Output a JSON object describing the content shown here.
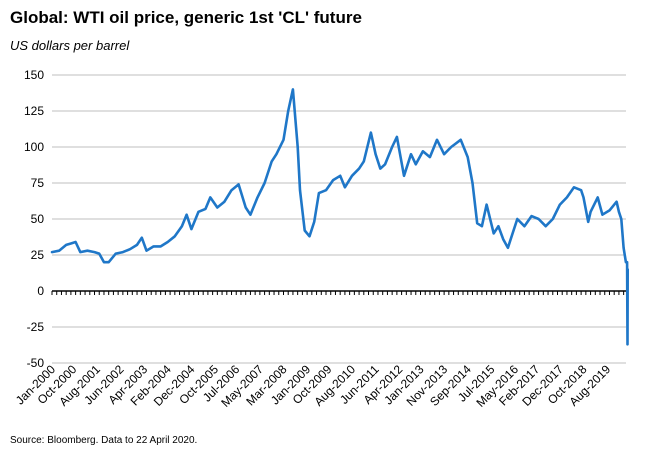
{
  "title": "Global: WTI oil price, generic 1st 'CL' future",
  "subtitle": "US dollars per barrel",
  "source": "Source: Bloomberg. Data to 22 April 2020.",
  "chart_data": {
    "type": "line",
    "title": "Global: WTI oil price, generic 1st 'CL' future",
    "ylabel": "US dollars per barrel",
    "xlabel": "",
    "ylim": [
      -50,
      150
    ],
    "yticks": [
      150,
      125,
      100,
      75,
      50,
      25,
      0,
      -25,
      -50
    ],
    "xlim": [
      "2000-01",
      "2020-04"
    ],
    "grid": "horizontal",
    "legend": "none",
    "line_color": "#1f77c8",
    "xtick_labels": [
      "Jan-2000",
      "Oct-2000",
      "Aug-2001",
      "Jun-2002",
      "Apr-2003",
      "Feb-2004",
      "Dec-2004",
      "Oct-2005",
      "Jul-2006",
      "May-2007",
      "Mar-2008",
      "Jan-2009",
      "Oct-2009",
      "Aug-2010",
      "Jun-2011",
      "Apr-2012",
      "Jan-2013",
      "Nov-2013",
      "Sep-2014",
      "Jul-2015",
      "May-2016",
      "Feb-2017",
      "Dec-2017",
      "Oct-2018",
      "Aug-2019"
    ],
    "series": [
      {
        "x": [
          "2000-01",
          "2000-04",
          "2000-07",
          "2000-09",
          "2000-11",
          "2001-01",
          "2001-04",
          "2001-07",
          "2001-09",
          "2001-11",
          "2002-01",
          "2002-04",
          "2002-07",
          "2002-10",
          "2003-01",
          "2003-03",
          "2003-05",
          "2003-08",
          "2003-11",
          "2004-02",
          "2004-05",
          "2004-08",
          "2004-10",
          "2004-12",
          "2005-03",
          "2005-06",
          "2005-08",
          "2005-11",
          "2006-02",
          "2006-05",
          "2006-08",
          "2006-11",
          "2007-01",
          "2007-04",
          "2007-07",
          "2007-10",
          "2007-12",
          "2008-03",
          "2008-05",
          "2008-07",
          "2008-09",
          "2008-10",
          "2008-12",
          "2009-02",
          "2009-04",
          "2009-06",
          "2009-09",
          "2009-12",
          "2010-03",
          "2010-05",
          "2010-08",
          "2010-11",
          "2011-01",
          "2011-04",
          "2011-06",
          "2011-08",
          "2011-10",
          "2012-01",
          "2012-03",
          "2012-06",
          "2012-09",
          "2012-11",
          "2013-02",
          "2013-05",
          "2013-08",
          "2013-11",
          "2014-02",
          "2014-06",
          "2014-09",
          "2014-11",
          "2015-01",
          "2015-03",
          "2015-05",
          "2015-08",
          "2015-10",
          "2015-12",
          "2016-02",
          "2016-04",
          "2016-06",
          "2016-09",
          "2016-12",
          "2017-03",
          "2017-06",
          "2017-09",
          "2017-12",
          "2018-03",
          "2018-06",
          "2018-09",
          "2018-10",
          "2018-12",
          "2019-01",
          "2019-04",
          "2019-06",
          "2019-09",
          "2019-12",
          "2020-01",
          "2020-02",
          "2020-03",
          "2020-03-30",
          "2020-04-15",
          "2020-04-20",
          "2020-04-22"
        ],
        "y": [
          27,
          28,
          32,
          33,
          34,
          27,
          28,
          27,
          26,
          20,
          20,
          26,
          27,
          29,
          32,
          37,
          28,
          31,
          31,
          34,
          38,
          45,
          53,
          43,
          55,
          57,
          65,
          58,
          62,
          70,
          74,
          58,
          53,
          65,
          75,
          90,
          95,
          105,
          125,
          140,
          100,
          70,
          42,
          38,
          48,
          68,
          70,
          77,
          80,
          72,
          80,
          85,
          90,
          110,
          95,
          85,
          88,
          100,
          107,
          80,
          95,
          88,
          97,
          93,
          105,
          95,
          100,
          105,
          93,
          75,
          47,
          45,
          60,
          40,
          45,
          36,
          30,
          40,
          50,
          45,
          52,
          50,
          45,
          50,
          60,
          65,
          72,
          70,
          65,
          48,
          55,
          65,
          53,
          56,
          62,
          55,
          50,
          30,
          20,
          20,
          -37,
          15
        ]
      }
    ]
  }
}
